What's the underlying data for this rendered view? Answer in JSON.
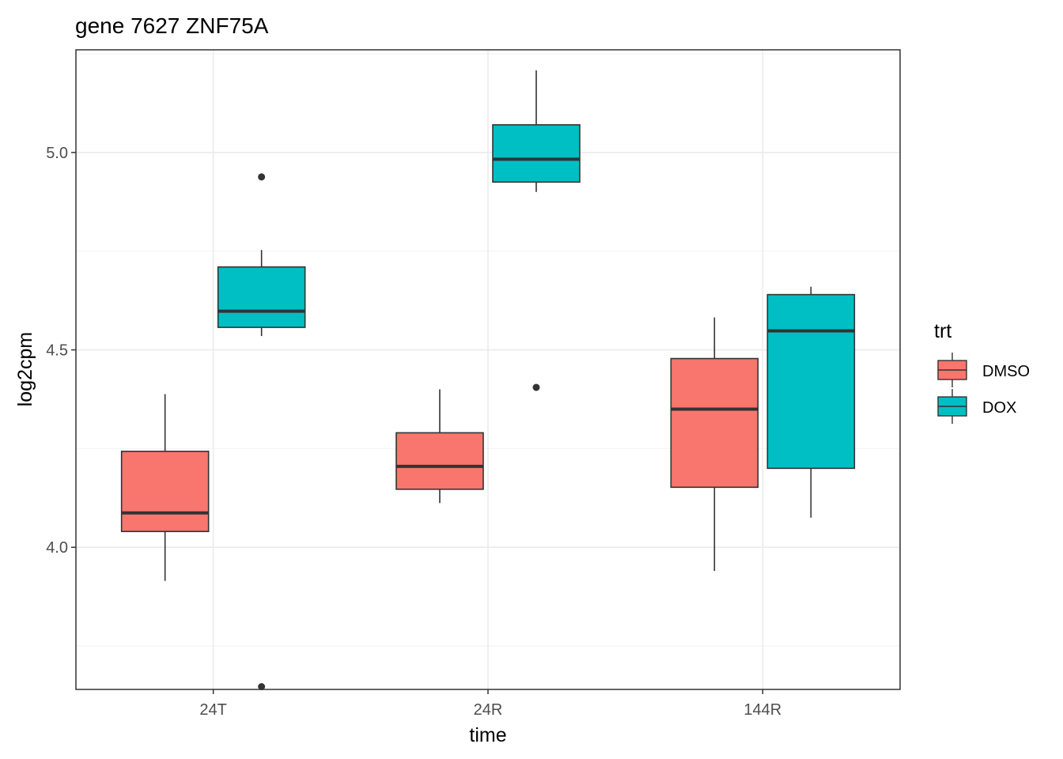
{
  "chart_data": {
    "type": "boxplot",
    "title": "gene 7627 ZNF75A",
    "xlabel": "time",
    "ylabel": "log2cpm",
    "categories": [
      "24T",
      "24R",
      "144R"
    ],
    "ylim": [
      3.64,
      5.26
    ],
    "yticks": [
      4.0,
      4.5,
      5.0
    ],
    "ytick_labels": [
      "4.0",
      "4.5",
      "5.0"
    ],
    "grid": true,
    "legend": {
      "title": "trt",
      "position": "right",
      "entries": [
        "DMSO",
        "DOX"
      ]
    },
    "colors": {
      "DMSO": "#F8766D",
      "DOX": "#00BFC4"
    },
    "series": [
      {
        "name": "DMSO",
        "boxes": [
          {
            "category": "24T",
            "lower_whisker": 3.915,
            "q1": 4.04,
            "median": 4.087,
            "q3": 4.243,
            "upper_whisker": 4.388,
            "outliers": []
          },
          {
            "category": "24R",
            "lower_whisker": 4.112,
            "q1": 4.147,
            "median": 4.205,
            "q3": 4.29,
            "upper_whisker": 4.4,
            "outliers": []
          },
          {
            "category": "144R",
            "lower_whisker": 3.94,
            "q1": 4.152,
            "median": 4.35,
            "q3": 4.478,
            "upper_whisker": 4.582,
            "outliers": []
          }
        ]
      },
      {
        "name": "DOX",
        "boxes": [
          {
            "category": "24T",
            "lower_whisker": 4.535,
            "q1": 4.557,
            "median": 4.598,
            "q3": 4.71,
            "upper_whisker": 4.753,
            "outliers": [
              4.938,
              3.647
            ]
          },
          {
            "category": "24R",
            "lower_whisker": 4.9,
            "q1": 4.925,
            "median": 4.983,
            "q3": 5.07,
            "upper_whisker": 5.208,
            "outliers": [
              4.405
            ]
          },
          {
            "category": "144R",
            "lower_whisker": 4.075,
            "q1": 4.2,
            "median": 4.548,
            "q3": 4.64,
            "upper_whisker": 4.66,
            "outliers": []
          }
        ]
      }
    ]
  }
}
